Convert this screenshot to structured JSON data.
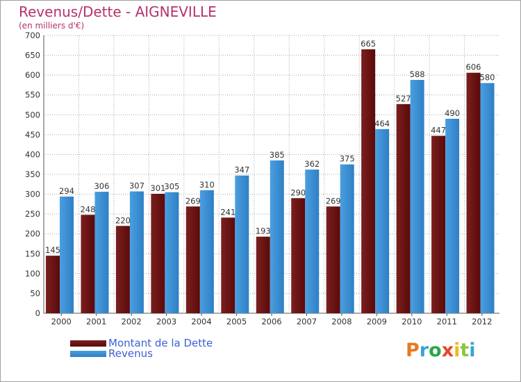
{
  "title": "Revenus/Dette - AIGNEVILLE",
  "subtitle": "(en milliers d'€)",
  "watermark": {
    "text": "Proxiti",
    "letter_colors": [
      "#e47a23",
      "#3aa2d8",
      "#2aa845",
      "#e8452c",
      "#f0b81c",
      "#8cc63f",
      "#3aa2d8"
    ]
  },
  "colors": {
    "dette": "#7a1f1f",
    "dette_dark": "#5c0a0a",
    "revenus": "#4a9fe0",
    "revenus_dark": "#2f7fc4",
    "grid": "#a8a8a8",
    "plot_bg": "#ffffff",
    "axis": "#555555",
    "title": "#b5316a",
    "legend_text": "#3c5fd6"
  },
  "chart_data": {
    "type": "bar",
    "title": "Revenus/Dette - AIGNEVILLE",
    "subtitle": "(en milliers d'€)",
    "categories": [
      "2000",
      "2001",
      "2002",
      "2003",
      "2004",
      "2005",
      "2006",
      "2007",
      "2008",
      "2009",
      "2010",
      "2011",
      "2012"
    ],
    "series": [
      {
        "name": "Montant de la Dette",
        "values": [
          145,
          248,
          220,
          301,
          269,
          241,
          193,
          290,
          269,
          665,
          527,
          447,
          606
        ]
      },
      {
        "name": "Revenus",
        "values": [
          294,
          306,
          307,
          305,
          310,
          347,
          385,
          362,
          375,
          464,
          588,
          490,
          580
        ]
      }
    ],
    "ylim": [
      0,
      700
    ],
    "ytick_step": 50,
    "grid": true,
    "legend_position": "bottom-left",
    "data_labels": true
  }
}
